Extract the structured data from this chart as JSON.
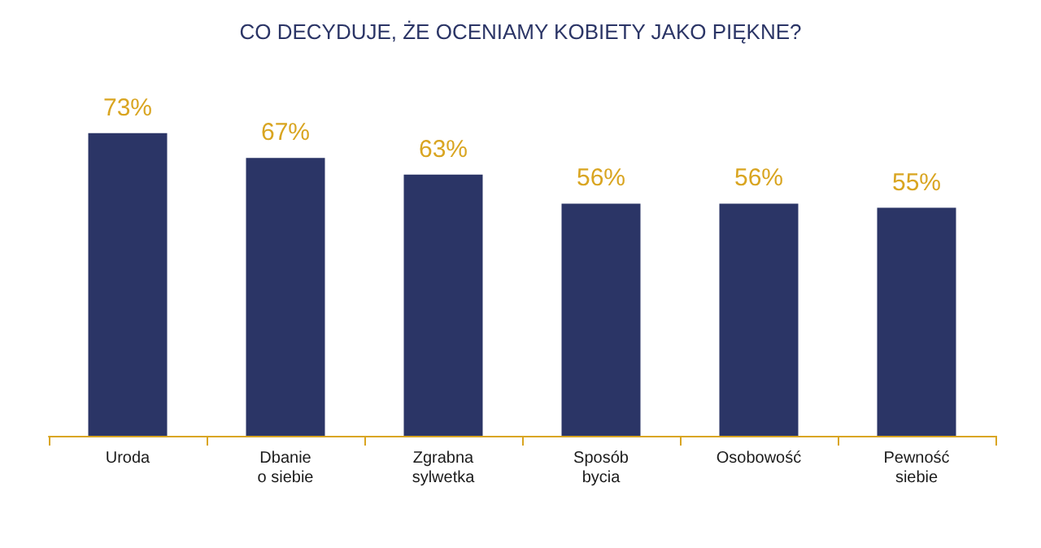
{
  "chart_data": {
    "type": "bar",
    "title": "CO DECYDUJE, ŻE OCENIAMY KOBIETY JAKO PIĘKNE?",
    "categories": [
      "Uroda",
      "Dbanie\no siebie",
      "Zgrabna\nsylwetka",
      "Sposób\nbycia",
      "Osobowość",
      "Pewność\nsiebie"
    ],
    "values": [
      73,
      67,
      63,
      56,
      56,
      55
    ],
    "value_labels": [
      "73%",
      "67%",
      "63%",
      "56%",
      "56%",
      "55%"
    ],
    "color": "#2b3566"
  }
}
